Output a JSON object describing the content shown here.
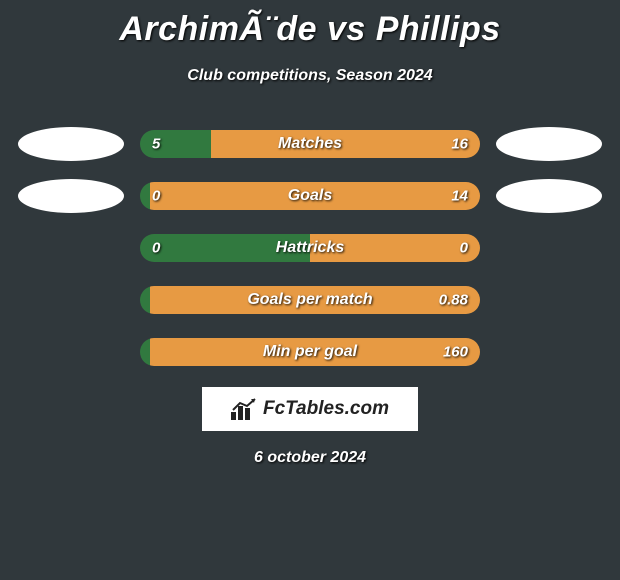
{
  "title": "ArchimÃ¨de vs Phillips",
  "subtitle": "Club competitions, Season 2024",
  "date": "6 october 2024",
  "brand": "FcTables.com",
  "background_color": "#30383c",
  "blob_color": "#ffffff",
  "rows": [
    {
      "label": "Matches",
      "left_value": "5",
      "right_value": "16",
      "left_pct": 21,
      "left_color": "#31793f",
      "right_color": "#e79a43",
      "show_blobs": true
    },
    {
      "label": "Goals",
      "left_value": "0",
      "right_value": "14",
      "left_pct": 3,
      "left_color": "#31793f",
      "right_color": "#e79a43",
      "show_blobs": true
    },
    {
      "label": "Hattricks",
      "left_value": "0",
      "right_value": "0",
      "left_pct": 50,
      "left_color": "#31793f",
      "right_color": "#e79a43",
      "show_blobs": false
    },
    {
      "label": "Goals per match",
      "left_value": "",
      "right_value": "0.88",
      "left_pct": 3,
      "left_color": "#31793f",
      "right_color": "#e79a43",
      "show_blobs": false
    },
    {
      "label": "Min per goal",
      "left_value": "",
      "right_value": "160",
      "left_pct": 3,
      "left_color": "#31793f",
      "right_color": "#e79a43",
      "show_blobs": false
    }
  ]
}
